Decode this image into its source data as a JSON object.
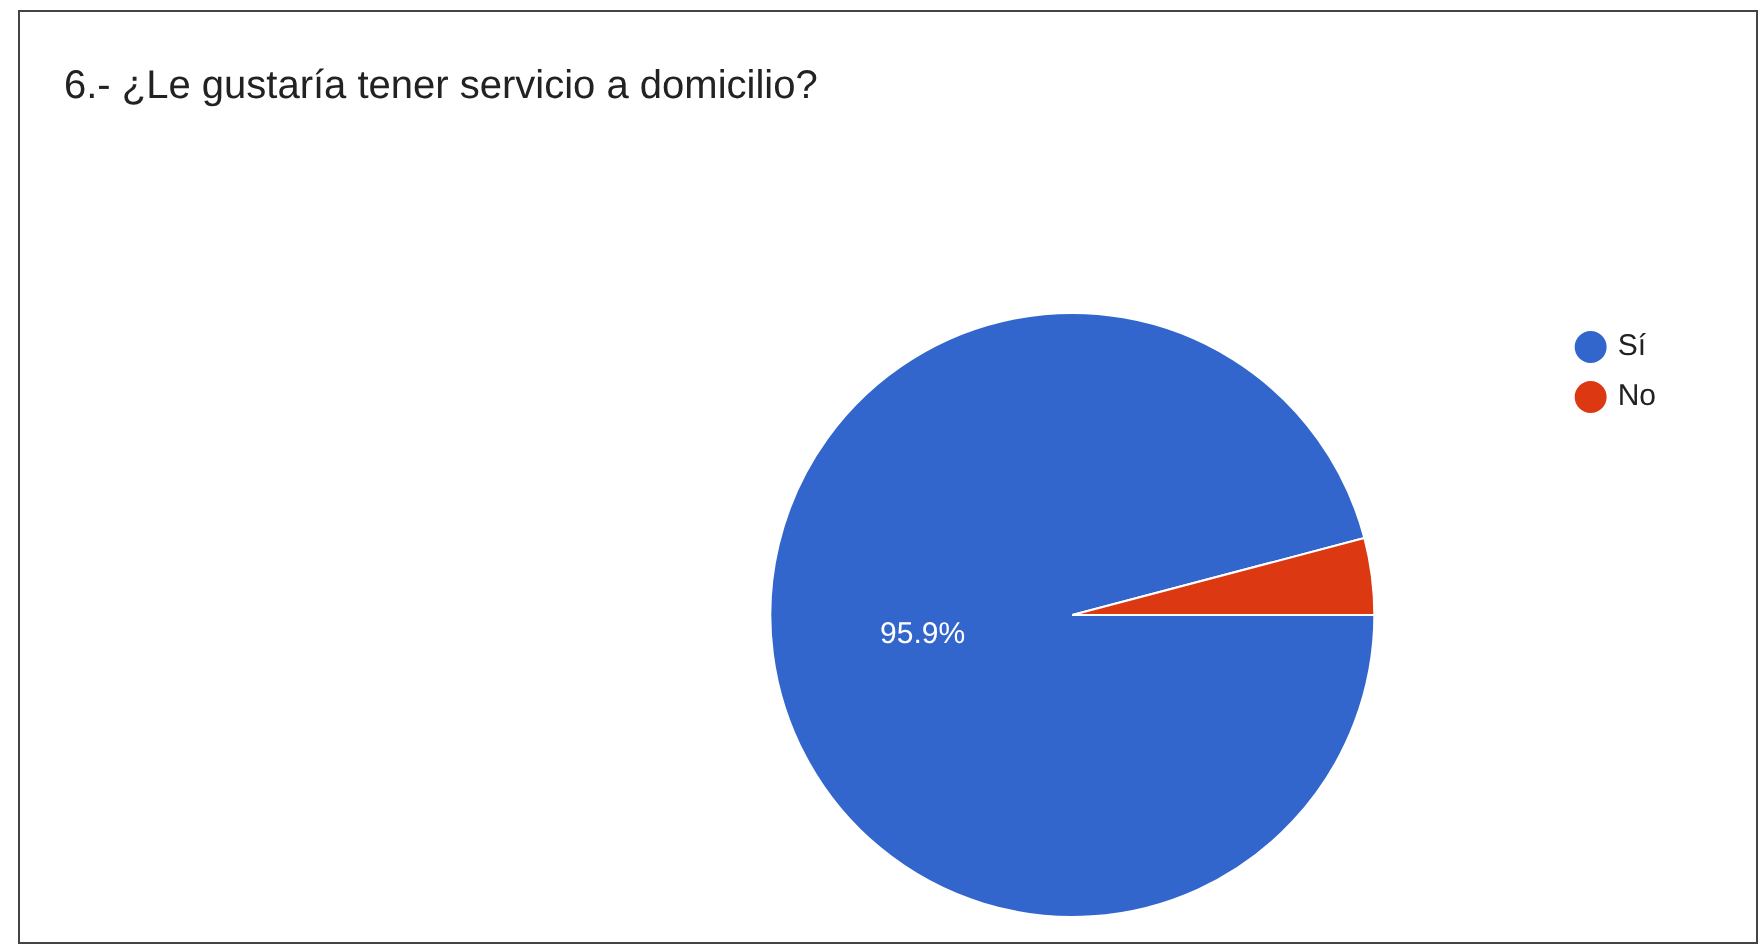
{
  "chart_data": {
    "type": "pie",
    "title": "6.- ¿Le gustaría tener servicio a domicilio?",
    "categories": [
      "Sí",
      "No"
    ],
    "values": [
      95.9,
      4.1
    ],
    "colors": [
      "#3366cc",
      "#dc3912"
    ],
    "value_labels": [
      "95.9%",
      null
    ],
    "legend": "right"
  }
}
